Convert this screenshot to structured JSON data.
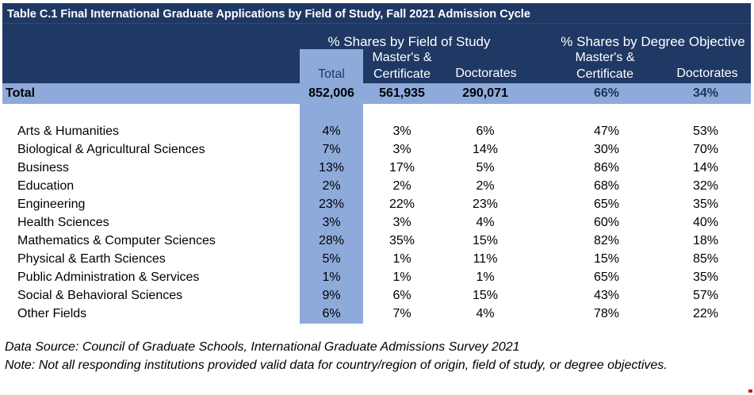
{
  "title": "Table C.1 Final International Graduate Applications by Field of Study, Fall 2021 Admission Cycle",
  "colors": {
    "header_navy": "#1F3864",
    "highlight_blue": "#8EAADB",
    "header_text": "#FFFFFF",
    "artifact_red": "#D11A17"
  },
  "header": {
    "group_field_of_study": "% Shares by Field of Study",
    "group_degree_objective": "% Shares by Degree Objective",
    "total_column": "Total",
    "masters_line1": "Master's &",
    "masters_line2": "Certificate",
    "doctorates": "Doctorates"
  },
  "total_row": {
    "label": "Total",
    "total": "852,006",
    "fos_masters_certificate": "561,935",
    "fos_doctorates": "290,071",
    "deg_masters_certificate": "66%",
    "deg_doctorates": "34%"
  },
  "rows": [
    {
      "field": "Arts & Humanities",
      "total": "4%",
      "fos_masters_certificate": "3%",
      "fos_doctorates": "6%",
      "deg_masters_certificate": "47%",
      "deg_doctorates": "53%"
    },
    {
      "field": "Biological & Agricultural Sciences",
      "total": "7%",
      "fos_masters_certificate": "3%",
      "fos_doctorates": "14%",
      "deg_masters_certificate": "30%",
      "deg_doctorates": "70%"
    },
    {
      "field": "Business",
      "total": "13%",
      "fos_masters_certificate": "17%",
      "fos_doctorates": "5%",
      "deg_masters_certificate": "86%",
      "deg_doctorates": "14%"
    },
    {
      "field": "Education",
      "total": "2%",
      "fos_masters_certificate": "2%",
      "fos_doctorates": "2%",
      "deg_masters_certificate": "68%",
      "deg_doctorates": "32%"
    },
    {
      "field": "Engineering",
      "total": "23%",
      "fos_masters_certificate": "22%",
      "fos_doctorates": "23%",
      "deg_masters_certificate": "65%",
      "deg_doctorates": "35%"
    },
    {
      "field": "Health Sciences",
      "total": "3%",
      "fos_masters_certificate": "3%",
      "fos_doctorates": "4%",
      "deg_masters_certificate": "60%",
      "deg_doctorates": "40%"
    },
    {
      "field": "Mathematics & Computer Sciences",
      "total": "28%",
      "fos_masters_certificate": "35%",
      "fos_doctorates": "15%",
      "deg_masters_certificate": "82%",
      "deg_doctorates": "18%"
    },
    {
      "field": "Physical & Earth Sciences",
      "total": "5%",
      "fos_masters_certificate": "1%",
      "fos_doctorates": "11%",
      "deg_masters_certificate": "15%",
      "deg_doctorates": "85%"
    },
    {
      "field": "Public Administration & Services",
      "total": "1%",
      "fos_masters_certificate": "1%",
      "fos_doctorates": "1%",
      "deg_masters_certificate": "65%",
      "deg_doctorates": "35%"
    },
    {
      "field": "Social & Behavioral Sciences",
      "total": "9%",
      "fos_masters_certificate": "6%",
      "fos_doctorates": "15%",
      "deg_masters_certificate": "43%",
      "deg_doctorates": "57%"
    },
    {
      "field": "Other Fields",
      "total": "6%",
      "fos_masters_certificate": "7%",
      "fos_doctorates": "4%",
      "deg_masters_certificate": "78%",
      "deg_doctorates": "22%"
    }
  ],
  "footer": {
    "data_source": "Data Source: Council of Graduate Schools, International Graduate Admissions Survey 2021",
    "note": "Note: Not all responding institutions provided valid data for country/region of origin, field of study, or degree objectives."
  }
}
